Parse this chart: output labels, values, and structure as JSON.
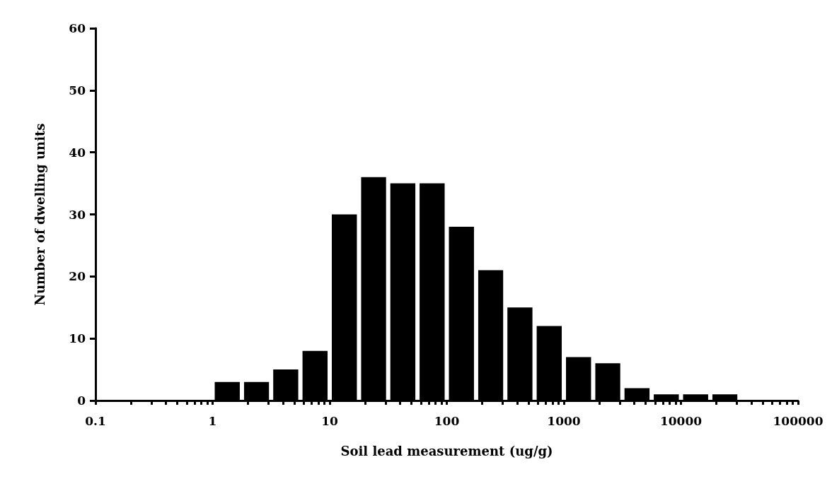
{
  "chart_data": {
    "type": "histogram",
    "xlabel": "Soil lead measurement (ug/g)",
    "ylabel": "Number of dwelling units",
    "color": "#000000",
    "bins": [
      1,
      1.78,
      3.16,
      5.62,
      10,
      17.8,
      31.6,
      56.2,
      100,
      178,
      316,
      562,
      1000,
      1780,
      3160,
      5620,
      10000,
      17800,
      31600
    ],
    "values": [
      3,
      3,
      5,
      8,
      30,
      36,
      35,
      35,
      28,
      21,
      15,
      12,
      7,
      6,
      2,
      1,
      1,
      1
    ],
    "log": "x",
    "xlim": [
      0.1,
      100000
    ],
    "xticks": [
      {
        "value": 0.1,
        "label": "0.1"
      },
      {
        "value": 0.2,
        "label": null
      },
      {
        "value": 0.3,
        "label": null
      },
      {
        "value": 0.4,
        "label": null
      },
      {
        "value": 0.5,
        "label": null
      },
      {
        "value": 0.6,
        "label": null
      },
      {
        "value": 0.7,
        "label": null
      },
      {
        "value": 0.8,
        "label": null
      },
      {
        "value": 0.9,
        "label": null
      },
      {
        "value": 1,
        "label": "1"
      },
      {
        "value": 2,
        "label": null
      },
      {
        "value": 3,
        "label": null
      },
      {
        "value": 4,
        "label": null
      },
      {
        "value": 5,
        "label": null
      },
      {
        "value": 6,
        "label": null
      },
      {
        "value": 7,
        "label": null
      },
      {
        "value": 8,
        "label": null
      },
      {
        "value": 9,
        "label": null
      },
      {
        "value": 10,
        "label": "10"
      },
      {
        "value": 20,
        "label": null
      },
      {
        "value": 30,
        "label": null
      },
      {
        "value": 40,
        "label": null
      },
      {
        "value": 50,
        "label": null
      },
      {
        "value": 60,
        "label": null
      },
      {
        "value": 70,
        "label": null
      },
      {
        "value": 80,
        "label": null
      },
      {
        "value": 90,
        "label": null
      },
      {
        "value": 100,
        "label": "100"
      },
      {
        "value": 200,
        "label": null
      },
      {
        "value": 300,
        "label": null
      },
      {
        "value": 400,
        "label": null
      },
      {
        "value": 500,
        "label": null
      },
      {
        "value": 600,
        "label": null
      },
      {
        "value": 700,
        "label": null
      },
      {
        "value": 800,
        "label": null
      },
      {
        "value": 900,
        "label": null
      },
      {
        "value": 1000,
        "label": "1000"
      },
      {
        "value": 2000,
        "label": null
      },
      {
        "value": 3000,
        "label": null
      },
      {
        "value": 4000,
        "label": null
      },
      {
        "value": 5000,
        "label": null
      },
      {
        "value": 6000,
        "label": null
      },
      {
        "value": 7000,
        "label": null
      },
      {
        "value": 8000,
        "label": null
      },
      {
        "value": 9000,
        "label": null
      },
      {
        "value": 10000,
        "label": "10000"
      },
      {
        "value": 20000,
        "label": null
      },
      {
        "value": 30000,
        "label": null
      },
      {
        "value": 40000,
        "label": null
      },
      {
        "value": 50000,
        "label": null
      },
      {
        "value": 60000,
        "label": null
      },
      {
        "value": 70000,
        "label": null
      },
      {
        "value": 80000,
        "label": null
      },
      {
        "value": 90000,
        "label": null
      },
      {
        "value": 100000,
        "label": "100000"
      }
    ],
    "ylim": [
      0,
      60
    ],
    "yticks": [
      0,
      10,
      20,
      30,
      40,
      50,
      60
    ],
    "grid": false
  }
}
